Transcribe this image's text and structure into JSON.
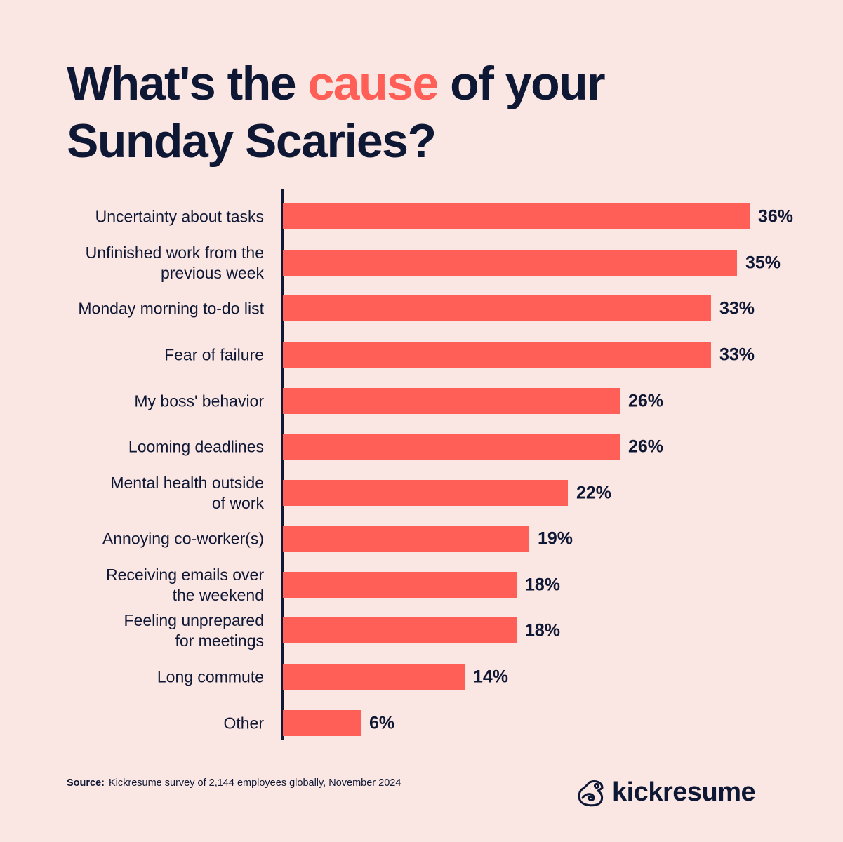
{
  "header": {
    "title_part1": "What's the ",
    "title_accent": "cause",
    "title_part2": " of your",
    "title_line2": "Sunday Scaries?"
  },
  "colors": {
    "background": "#FAE7E4",
    "bar": "#FF5F57",
    "accent": "#FF5F57",
    "text": "#0E1733"
  },
  "chart_data": {
    "type": "bar",
    "orientation": "horizontal",
    "title": "What's the cause of your Sunday Scaries?",
    "xlabel": "",
    "ylabel": "",
    "xlim": [
      0,
      36
    ],
    "grid": false,
    "legend": null,
    "categories": [
      "Uncertainty about tasks",
      "Unfinished work from the previous week",
      "Monday morning to-do list",
      "Fear of failure",
      "My boss' behavior",
      "Looming deadlines",
      "Mental health outside of work",
      "Annoying co-worker(s)",
      "Receiving emails over the weekend",
      "Feeling unprepared for meetings",
      "Long commute",
      "Other"
    ],
    "values": [
      36,
      35,
      33,
      33,
      26,
      26,
      22,
      19,
      18,
      18,
      14,
      6
    ],
    "value_labels": [
      "36%",
      "35%",
      "33%",
      "33%",
      "26%",
      "26%",
      "22%",
      "19%",
      "18%",
      "18%",
      "14%",
      "6%"
    ],
    "unit": "%"
  },
  "rows": [
    {
      "label": "Uncertainty about tasks",
      "value": 36,
      "value_label": "36%"
    },
    {
      "label": "Unfinished work from the\nprevious week",
      "value": 35,
      "value_label": "35%"
    },
    {
      "label": "Monday morning to-do list",
      "value": 33,
      "value_label": "33%"
    },
    {
      "label": "Fear of failure",
      "value": 33,
      "value_label": "33%"
    },
    {
      "label": "My boss' behavior",
      "value": 26,
      "value_label": "26%"
    },
    {
      "label": "Looming deadlines",
      "value": 26,
      "value_label": "26%"
    },
    {
      "label": "Mental health outside\nof work",
      "value": 22,
      "value_label": "22%"
    },
    {
      "label": "Annoying co-worker(s)",
      "value": 19,
      "value_label": "19%"
    },
    {
      "label": "Receiving emails over\nthe weekend",
      "value": 18,
      "value_label": "18%"
    },
    {
      "label": "Feeling unprepared\nfor meetings",
      "value": 18,
      "value_label": "18%"
    },
    {
      "label": "Long commute",
      "value": 14,
      "value_label": "14%"
    },
    {
      "label": "Other",
      "value": 6,
      "value_label": "6%"
    }
  ],
  "footer": {
    "source_label": "Source:",
    "source_text": "Kickresume survey of 2,144 employees globally, November 2024",
    "brand": "kickresume",
    "brand_icon": "chameleon-logo-icon"
  }
}
